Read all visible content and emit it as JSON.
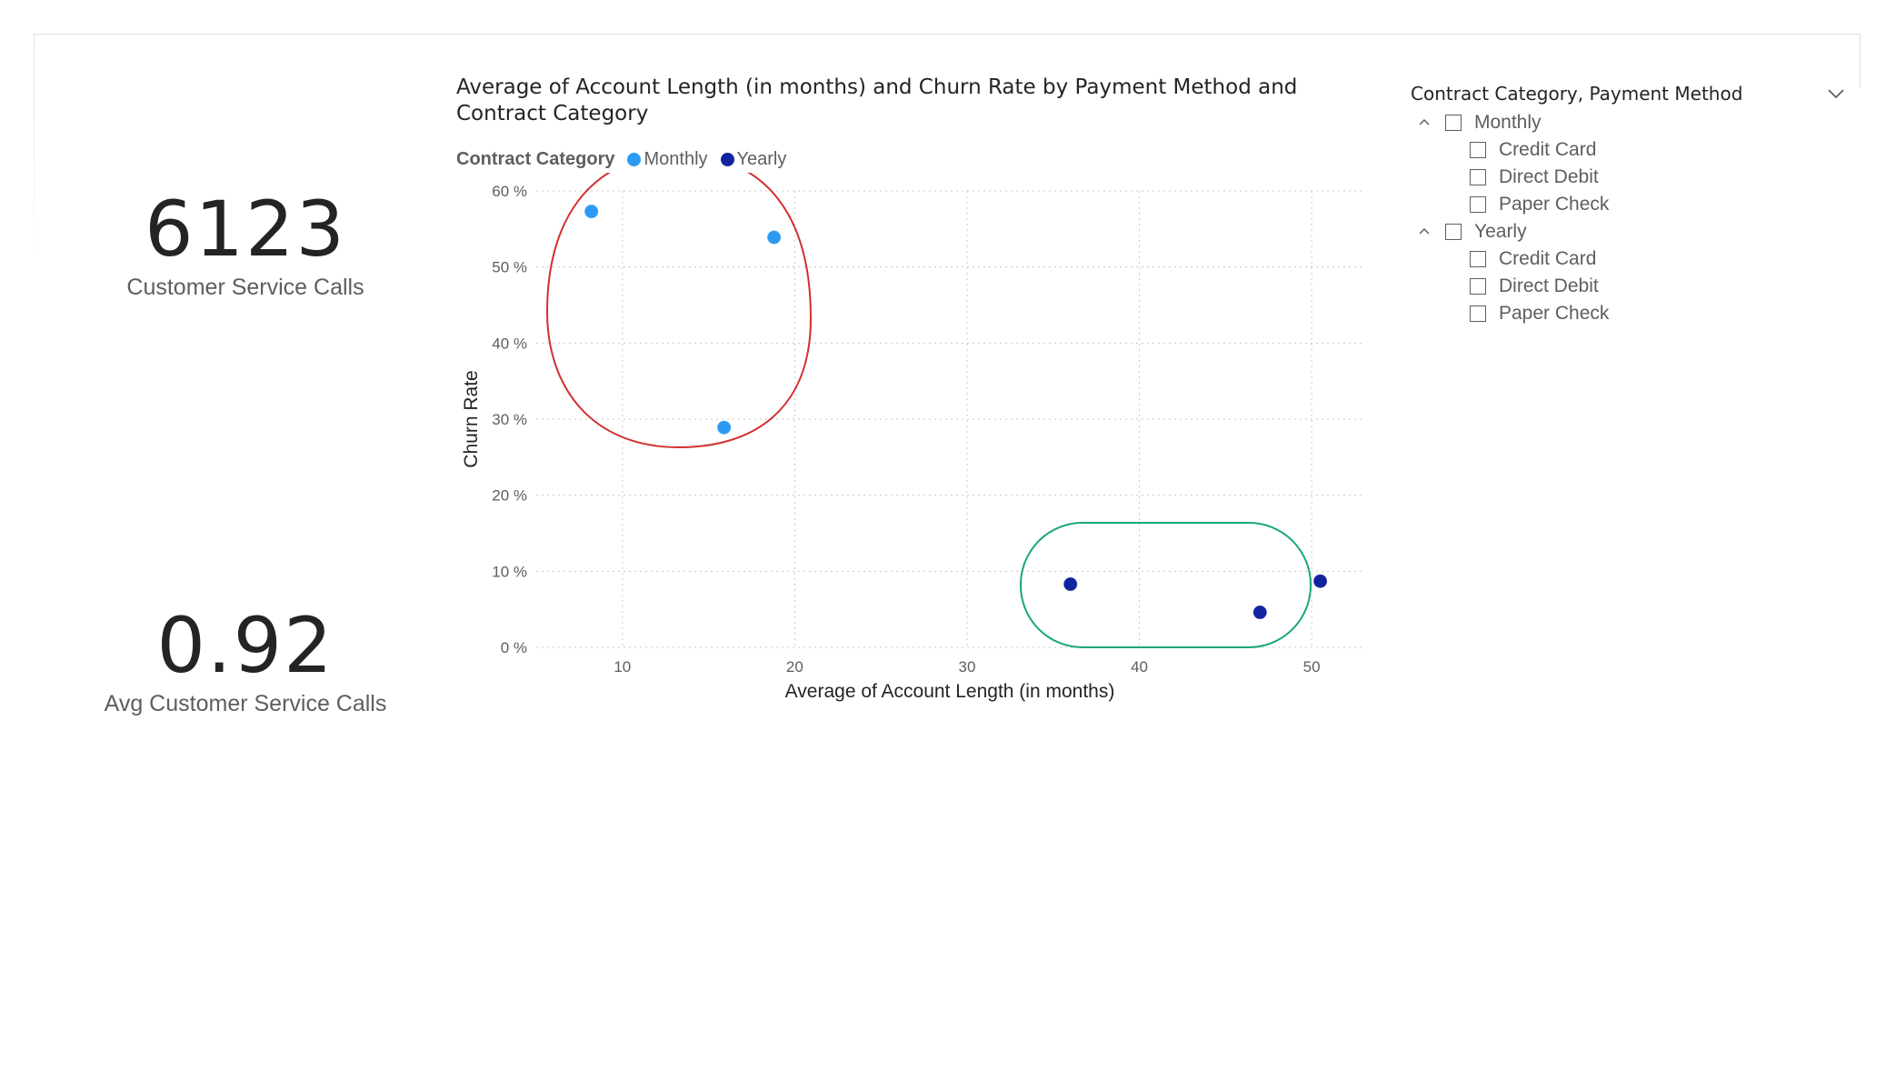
{
  "cards": [
    {
      "value": "6123",
      "label": "Customer Service Calls"
    },
    {
      "value": "0.92",
      "label": "Avg Customer Service Calls"
    }
  ],
  "chart": {
    "title": "Average of Account Length (in months) and Churn Rate by Payment Method and Contract Category",
    "legend_title": "Contract Category",
    "legend": [
      {
        "name": "Monthly",
        "color": "#2b9af3"
      },
      {
        "name": "Yearly",
        "color": "#12239e"
      }
    ],
    "annotation_colors": {
      "monthly_circle": "#d32f2f",
      "yearly_circle": "#1aa67d"
    }
  },
  "chart_data": {
    "type": "scatter",
    "title": "Average of Account Length (in months) and Churn Rate by Payment Method and Contract Category",
    "xlabel": "Average of Account Length (in months)",
    "ylabel": "Churn Rate",
    "xlim": [
      5,
      53
    ],
    "ylim": [
      0,
      60
    ],
    "x_ticks": [
      10,
      20,
      30,
      40,
      50
    ],
    "y_ticks": [
      0,
      10,
      20,
      30,
      40,
      50,
      60
    ],
    "y_tick_labels": [
      "0 %",
      "10 %",
      "20 %",
      "30 %",
      "40 %",
      "50 %",
      "60 %"
    ],
    "grid": true,
    "legend_position": "top-left",
    "series": [
      {
        "name": "Monthly",
        "color": "#2b9af3",
        "points": [
          {
            "x": 8.2,
            "y": 57.3
          },
          {
            "x": 18.8,
            "y": 53.9
          },
          {
            "x": 15.9,
            "y": 28.9
          }
        ]
      },
      {
        "name": "Yearly",
        "color": "#12239e",
        "points": [
          {
            "x": 36.0,
            "y": 8.3
          },
          {
            "x": 47.0,
            "y": 4.6
          },
          {
            "x": 50.5,
            "y": 8.7
          }
        ]
      }
    ]
  },
  "slicer": {
    "title": "Contract Category, Payment Method",
    "groups": [
      {
        "label": "Monthly",
        "children": [
          "Credit Card",
          "Direct Debit",
          "Paper Check"
        ]
      },
      {
        "label": "Yearly",
        "children": [
          "Credit Card",
          "Direct Debit",
          "Paper Check"
        ]
      }
    ]
  }
}
